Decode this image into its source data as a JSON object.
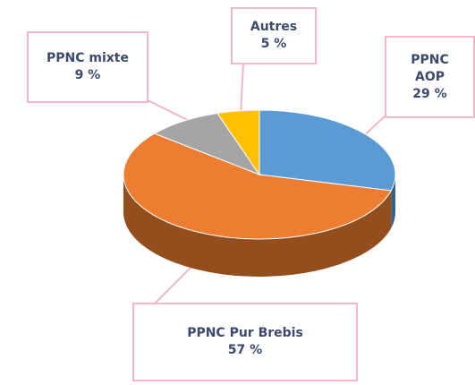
{
  "chart_data": {
    "type": "pie",
    "categories": [
      "PPNC AOP",
      "PPNC Pur Brebis",
      "PPNC mixte",
      "Autres"
    ],
    "values": [
      29,
      57,
      9,
      5
    ],
    "value_labels": [
      "29 %",
      "57 %",
      "9 %",
      "5 %"
    ],
    "colors": [
      "#5b9bd5",
      "#ed7d31",
      "#a5a5a5",
      "#ffc000"
    ]
  }
}
